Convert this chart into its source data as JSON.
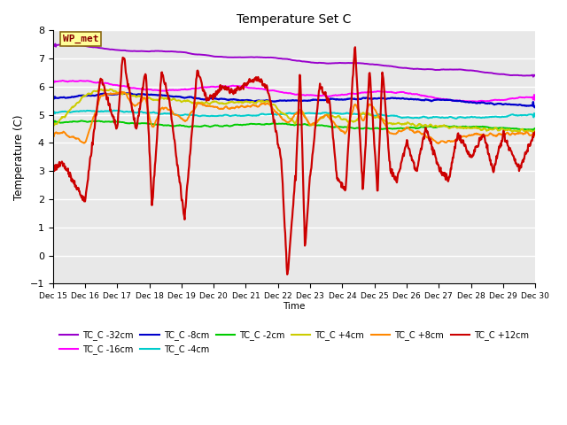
{
  "title": "Temperature Set C",
  "xlabel": "Time",
  "ylabel": "Temperature (C)",
  "ylim": [
    -1.0,
    8.0
  ],
  "yticks": [
    -1.0,
    0.0,
    1.0,
    2.0,
    3.0,
    4.0,
    5.0,
    6.0,
    7.0,
    8.0
  ],
  "x_labels": [
    "Dec 15",
    "Dec 16",
    "Dec 17",
    "Dec 18",
    "Dec 19",
    "Dec 20",
    "Dec 21",
    "Dec 22",
    "Dec 23",
    "Dec 24",
    "Dec 25",
    "Dec 26",
    "Dec 27",
    "Dec 28",
    "Dec 29",
    "Dec 30"
  ],
  "n_points": 960,
  "annotation_text": "WP_met",
  "annotation_color": "#8B0000",
  "annotation_bg": "#FFFF99",
  "annotation_border": "#8B6914",
  "series": [
    {
      "label": "TC_C -32cm",
      "color": "#9900CC"
    },
    {
      "label": "TC_C -16cm",
      "color": "#FF00FF"
    },
    {
      "label": "TC_C -8cm",
      "color": "#0000CC"
    },
    {
      "label": "TC_C -4cm",
      "color": "#00CCCC"
    },
    {
      "label": "TC_C -2cm",
      "color": "#00CC00"
    },
    {
      "label": "TC_C +4cm",
      "color": "#CCCC00"
    },
    {
      "label": "TC_C +8cm",
      "color": "#FF8800"
    },
    {
      "label": "TC_C +12cm",
      "color": "#CC0000"
    }
  ],
  "background_color": "#FFFFFF",
  "plot_bg_color": "#E8E8E8",
  "grid_color": "#FFFFFF",
  "figsize": [
    6.4,
    4.8
  ],
  "dpi": 100
}
